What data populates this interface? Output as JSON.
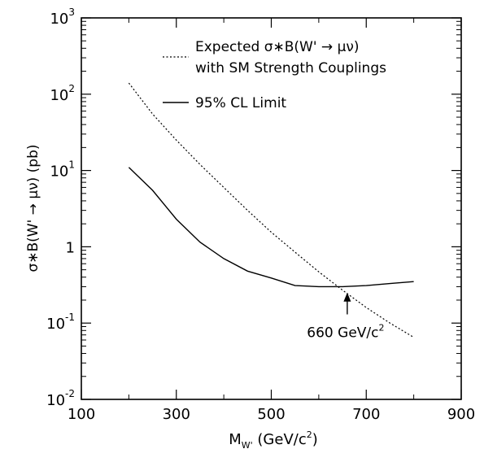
{
  "chart_data": {
    "type": "line",
    "title": "",
    "xlabel_main": "M",
    "xlabel_sub": "W'",
    "xlabel_rest": " (GeV/c",
    "xlabel_sup": "2",
    "xlabel_close": ")",
    "ylabel": "σ∗B(W' → μν) (pb)",
    "xlim": [
      100,
      900
    ],
    "ylim": [
      0.01,
      1000
    ],
    "y_scale": "log",
    "x_ticks": [
      {
        "value": 100,
        "label": "100"
      },
      {
        "value": 300,
        "label": "300"
      },
      {
        "value": 500,
        "label": "500"
      },
      {
        "value": 700,
        "label": "700"
      },
      {
        "value": 900,
        "label": "900"
      }
    ],
    "y_ticks": [
      {
        "value": 0.01,
        "base": "10",
        "exp": "-2",
        "label": ""
      },
      {
        "value": 0.1,
        "base": "10",
        "exp": "-1",
        "label": ""
      },
      {
        "value": 1,
        "base": "",
        "exp": "",
        "label": "1"
      },
      {
        "value": 10,
        "base": "10",
        "exp": "1",
        "label": ""
      },
      {
        "value": 100,
        "base": "10",
        "exp": "2",
        "label": ""
      },
      {
        "value": 1000,
        "base": "10",
        "exp": "3",
        "label": ""
      }
    ],
    "series": [
      {
        "name": "Expected σ∗B(W' → μν) with SM Strength Couplings",
        "style": "dotted",
        "x": [
          200,
          250,
          300,
          350,
          400,
          450,
          500,
          550,
          600,
          650,
          700,
          750,
          800
        ],
        "y": [
          140,
          55,
          25,
          12,
          6.0,
          3.0,
          1.55,
          0.85,
          0.47,
          0.27,
          0.16,
          0.1,
          0.065
        ]
      },
      {
        "name": "95% CL Limit",
        "style": "solid",
        "x": [
          200,
          250,
          300,
          350,
          400,
          450,
          500,
          550,
          600,
          650,
          700,
          750,
          800
        ],
        "y": [
          11,
          5.5,
          2.3,
          1.15,
          0.7,
          0.48,
          0.39,
          0.31,
          0.3,
          0.3,
          0.31,
          0.33,
          0.35
        ]
      }
    ],
    "legend": {
      "placement": "top-right",
      "entries": [
        {
          "line1": "Expected σ∗B(W' → μν)",
          "line2": "with SM Strength Couplings",
          "style": "dotted"
        },
        {
          "line1": "95% CL Limit",
          "line2": "",
          "style": "solid"
        }
      ]
    },
    "annotation": {
      "text_main": "660 GeV/c",
      "text_sup": "2",
      "x": 660,
      "arrow_tip_y": 0.27,
      "arrow_tail_y": 0.13
    },
    "grid": false,
    "colors": {
      "line": "#000000",
      "background": "#ffffff"
    }
  }
}
